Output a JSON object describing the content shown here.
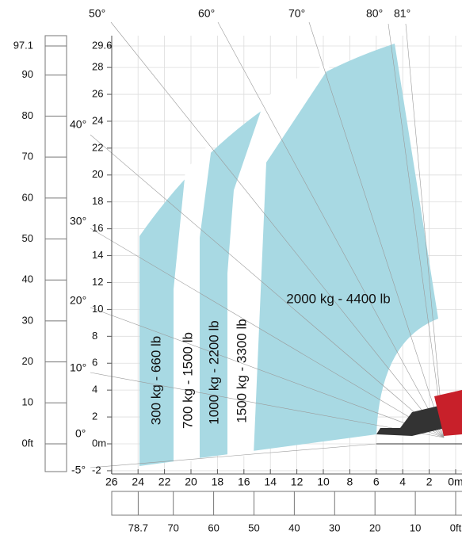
{
  "angles_top": [
    "50°",
    "60°",
    "70°",
    "80°",
    "81°"
  ],
  "angles_left": [
    "40°",
    "30°",
    "20°",
    "10°",
    "0°",
    "-5°"
  ],
  "feet_left": [
    97.1,
    90,
    80,
    70,
    60,
    50,
    40,
    30,
    20,
    10,
    "0ft"
  ],
  "meters_left": [
    29.6,
    28,
    26,
    24,
    22,
    20,
    18,
    16,
    14,
    12,
    10,
    8,
    6,
    4,
    2,
    "0m",
    -2
  ],
  "meters_bottom": [
    26,
    24,
    22,
    20,
    18,
    16,
    14,
    12,
    10,
    8,
    6,
    4,
    2,
    "0m"
  ],
  "feet_bottom": [
    78.7,
    70,
    60,
    50,
    40,
    30,
    20,
    10,
    "0ft"
  ],
  "zones": [
    "300 kg - 660 lb",
    "700 kg - 1500 lb",
    "1000 kg - 2200 lb",
    "1500 kg - 3300 lb",
    "2000 kg - 4400 lb"
  ]
}
